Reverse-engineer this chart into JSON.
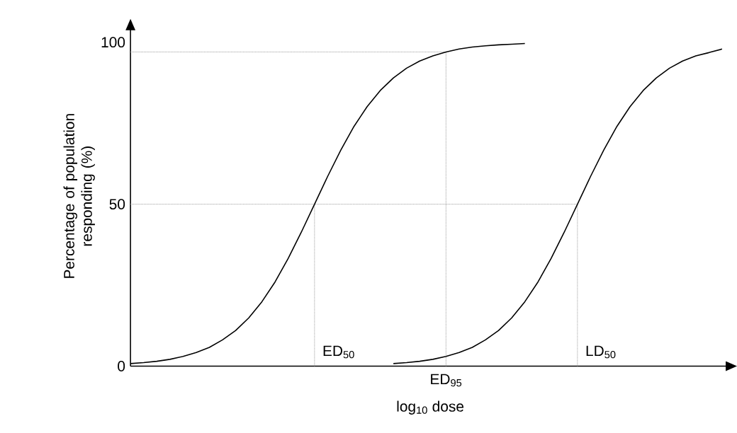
{
  "chart_data": {
    "type": "line",
    "ylabel": "Percentage of population responding (%)",
    "xlabel": "log$_{10}$ dose",
    "categories": [
      null,
      null,
      null,
      null,
      null,
      null,
      null,
      null,
      null,
      null,
      null,
      null,
      null,
      null,
      null,
      null,
      null,
      null,
      null,
      null,
      null,
      null,
      null,
      null,
      null,
      null,
      null,
      null,
      null,
      null,
      null,
      null,
      null,
      null,
      null,
      null,
      null,
      null,
      null,
      null,
      null,
      null,
      null,
      null,
      null,
      null
    ],
    "series": [
      {
        "color": "#000000",
        "values": [
          0.8,
          1.1,
          1.5,
          2.1,
          3.0,
          4.2,
          5.8,
          8.1,
          11.0,
          14.9,
          19.9,
          26.0,
          33.3,
          41.4,
          50,
          58.6,
          66.7,
          74.0,
          80.1,
          85.1,
          89.0,
          92.0,
          94.2,
          95.8,
          97.0,
          97.9,
          98.5,
          98.9,
          99.2,
          99.4,
          99.6,
          null,
          null,
          null,
          null,
          null,
          null,
          null,
          null,
          null,
          null,
          null,
          null,
          null,
          null,
          null
        ]
      },
      {
        "color": "#000000",
        "values": [
          null,
          null,
          null,
          null,
          null,
          null,
          null,
          null,
          null,
          null,
          null,
          null,
          null,
          null,
          null,
          null,
          null,
          null,
          null,
          null,
          0.8,
          1.1,
          1.5,
          2.1,
          3.0,
          4.2,
          5.8,
          8.1,
          11.0,
          14.9,
          19.9,
          26.0,
          33.3,
          41.4,
          50,
          58.6,
          66.7,
          74.0,
          80.1,
          85.1,
          89.0,
          92.0,
          94.2,
          95.8,
          96.8,
          97.9
        ]
      }
    ],
    "ylim": [
      0,
      105
    ],
    "yticks": [
      0,
      50,
      100
    ],
    "tick_labels": "y",
    "marker": "none",
    "line_style": "solid",
    "ref_lines": [
      {
        "axis": "y",
        "value": 50,
        "color": "#888888",
        "line_style": "dotted"
      },
      {
        "axis": "y",
        "value": 97,
        "color": "#888888",
        "line_style": "dotted"
      }
    ],
    "annotations": [
      "ED$_{50}$",
      "ED$_{95}$",
      "LD$_{50}$"
    ]
  }
}
